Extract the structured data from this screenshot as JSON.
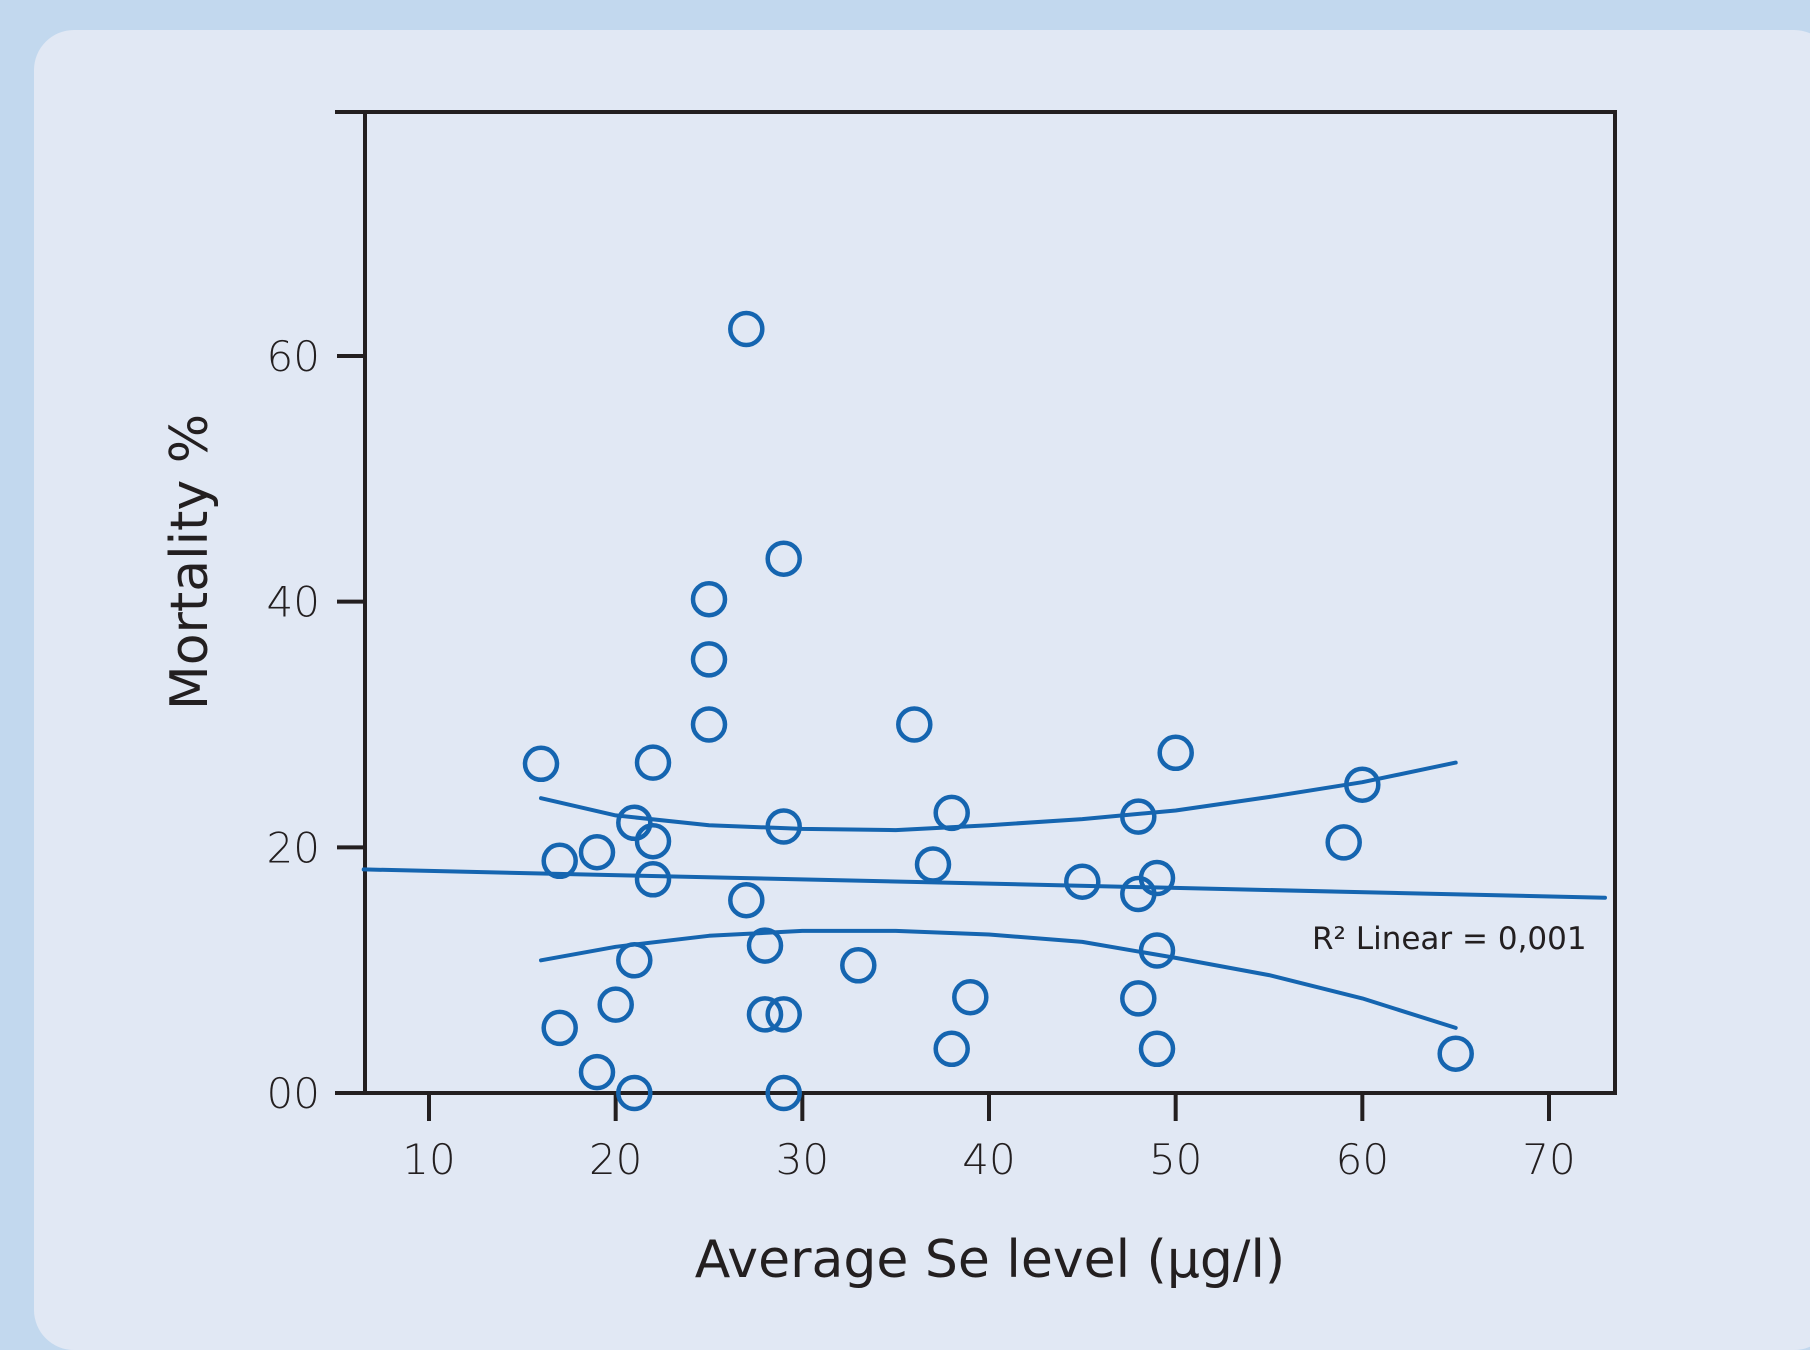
{
  "chart_data": {
    "type": "scatter",
    "title": "",
    "xlabel": "Average Se level (µg/l)",
    "ylabel": "Mortality %",
    "xlim": [
      6.5,
      73
    ],
    "ylim": [
      0,
      80
    ],
    "x_ticks": [
      10,
      20,
      30,
      40,
      50,
      60,
      70
    ],
    "y_ticks": [
      0,
      20,
      40,
      60
    ],
    "x_tick_labels": [
      "10",
      "20",
      "30",
      "40",
      "50",
      "60",
      "70"
    ],
    "y_tick_labels": [
      "00",
      "20",
      "40",
      "60"
    ],
    "grid": false,
    "colors": {
      "series": "#1565b0",
      "axis": "#231f20"
    },
    "points": [
      [
        27,
        62.2
      ],
      [
        29,
        43.5
      ],
      [
        25,
        40.2
      ],
      [
        25,
        35.3
      ],
      [
        25,
        30
      ],
      [
        36,
        30
      ],
      [
        16,
        26.8
      ],
      [
        22,
        26.9
      ],
      [
        50,
        27.7
      ],
      [
        60,
        25.1
      ],
      [
        38,
        22.8
      ],
      [
        48,
        22.5
      ],
      [
        21,
        22
      ],
      [
        22,
        20.5
      ],
      [
        29,
        21.7
      ],
      [
        59,
        20.4
      ],
      [
        17,
        18.9
      ],
      [
        19,
        19.6
      ],
      [
        37,
        18.6
      ],
      [
        22,
        17.4
      ],
      [
        45,
        17.2
      ],
      [
        49,
        17.5
      ],
      [
        48,
        16.2
      ],
      [
        27,
        15.7
      ],
      [
        28,
        12
      ],
      [
        49,
        11.6
      ],
      [
        21,
        10.8
      ],
      [
        33,
        10.4
      ],
      [
        20,
        7.2
      ],
      [
        39,
        7.8
      ],
      [
        48,
        7.7
      ],
      [
        28,
        6.4
      ],
      [
        29,
        6.4
      ],
      [
        17,
        5.3
      ],
      [
        38,
        3.6
      ],
      [
        49,
        3.6
      ],
      [
        65,
        3.2
      ],
      [
        19,
        1.7
      ],
      [
        21,
        0
      ],
      [
        29,
        0
      ]
    ],
    "linear_fit": {
      "x": [
        6.5,
        73
      ],
      "y": [
        18.2,
        15.9
      ]
    },
    "ci_upper": {
      "x": [
        16,
        20,
        25,
        30,
        35,
        40,
        45,
        50,
        55,
        60,
        65
      ],
      "y": [
        24.0,
        22.6,
        21.8,
        21.5,
        21.4,
        21.8,
        22.3,
        23.0,
        24.1,
        25.3,
        26.9
      ]
    },
    "ci_lower": {
      "x": [
        16,
        20,
        25,
        30,
        35,
        40,
        45,
        50,
        55,
        60,
        65
      ],
      "y": [
        10.8,
        11.9,
        12.8,
        13.2,
        13.2,
        12.9,
        12.3,
        11.0,
        9.6,
        7.7,
        5.3
      ]
    },
    "annotation": "R² Linear = 0,001"
  }
}
